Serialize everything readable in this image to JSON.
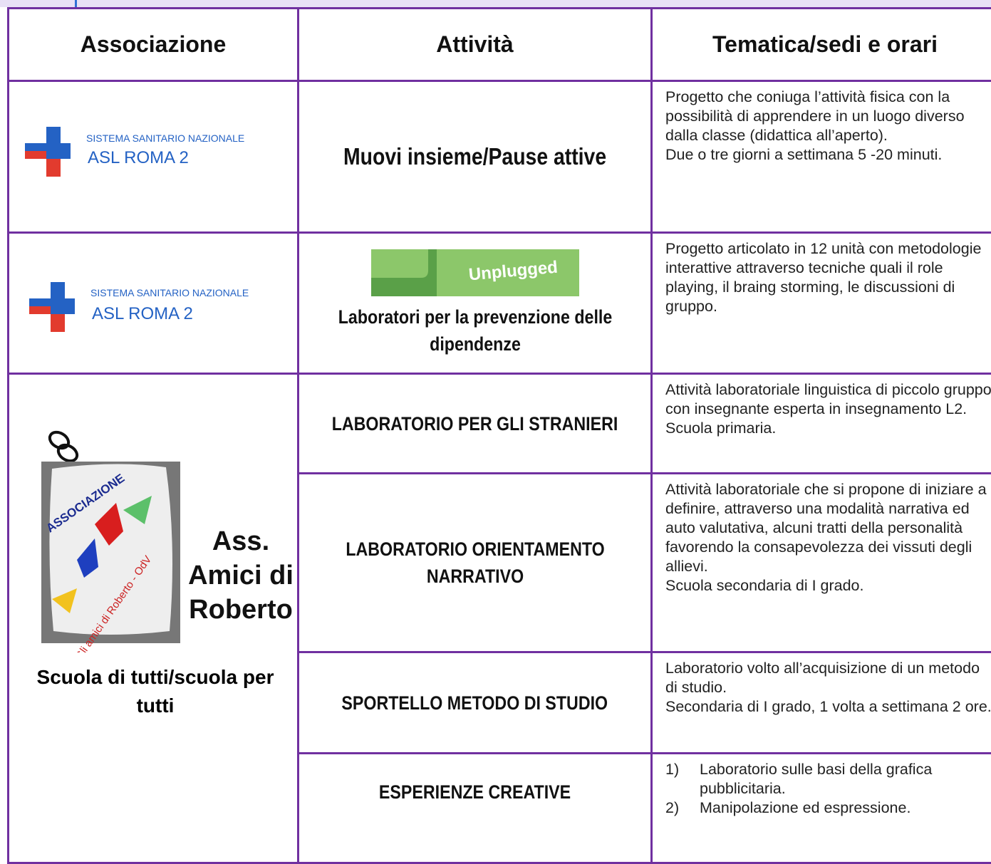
{
  "table": {
    "header": [
      "Associazione",
      "Attività",
      "Tematica/sedi e orari"
    ],
    "rows": [
      {
        "logo": {
          "line1": "SISTEMA SANITARIO NAZIONALE",
          "line2": "ASL ROMA 2"
        },
        "activity": "Muovi insieme/Pause attive",
        "details": [
          "Progetto che coniuga l’attività fisica con la possibilità di apprendere in un luogo diverso dalla classe (didattica all’aperto).",
          "Due o tre giorni a settimana 5 -20 minuti."
        ]
      },
      {
        "logo": {
          "line1": "SISTEMA SANITARIO NAZIONALE",
          "line2": "ASL ROMA 2"
        },
        "badge": "Unplugged",
        "activity": "Laboratori per la prevenzione delle dipendenze",
        "details": [
          "Progetto articolato in 12 unità con metodologie interattive attraverso tecniche quali il role playing, il braing storming, le discussioni di gruppo."
        ]
      }
    ],
    "group": {
      "logo": {
        "top": "ASSOCIAZIONE",
        "bottom": "Gli amici di Roberto - OdV"
      },
      "name": "Ass. Amici di Roberto",
      "project": "Scuola di tutti/scuola per tutti",
      "activities": [
        {
          "activity": "LABORATORIO PER GLI STRANIERI",
          "details": [
            "Attività laboratoriale linguistica di piccolo gruppo con insegnante esperta in insegnamento L2. Scuola primaria."
          ]
        },
        {
          "activity": "LABORATORIO ORIENTAMENTO NARRATIVO",
          "details": [
            "Attività laboratoriale che si propone di iniziare a definire, attraverso una modalità narrativa ed auto valutativa, alcuni tratti della personalità favorendo la consapevolezza dei vissuti degli allievi.",
            "Scuola secondaria di I grado."
          ]
        },
        {
          "activity": "SPORTELLO METODO DI STUDIO",
          "details": [
            "Laboratorio volto all’acquisizione di un metodo di studio.",
            "Secondaria di I grado, 1 volta a settimana 2 ore."
          ]
        },
        {
          "activity": "ESPERIENZE CREATIVE",
          "list": [
            {
              "marker": "1)",
              "text": "Laboratorio sulle basi della grafica pubblicitaria."
            },
            {
              "marker": "2)",
              "text": "Manipolazione ed espressione."
            }
          ]
        }
      ]
    }
  }
}
